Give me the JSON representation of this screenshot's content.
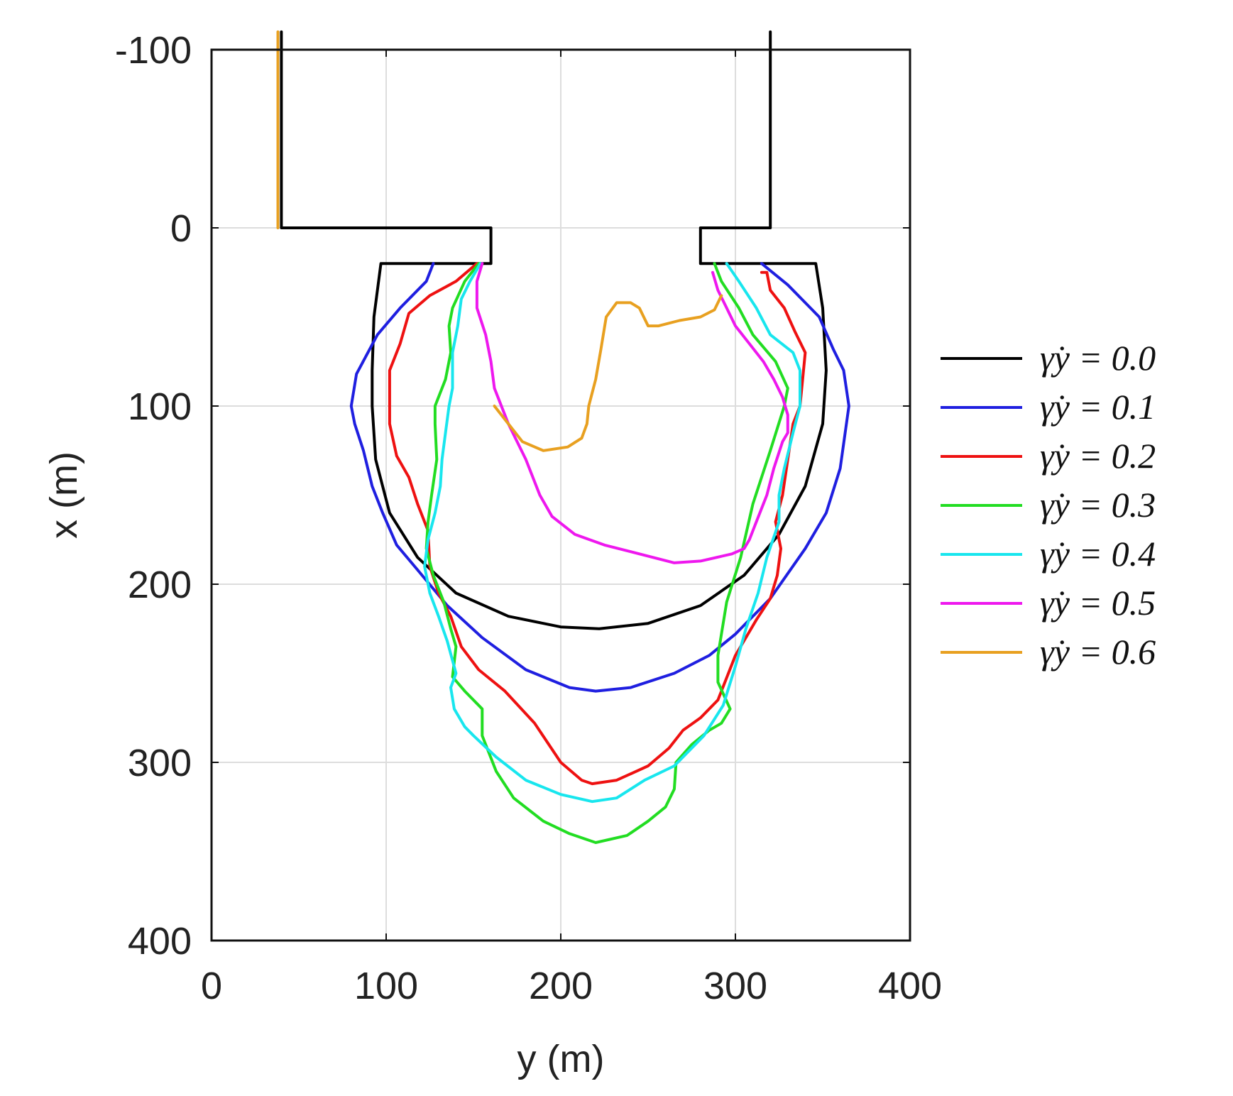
{
  "chart_data": {
    "type": "line",
    "title": "",
    "xlabel": "y (m)",
    "ylabel": "x (m)",
    "xlim": [
      0,
      400
    ],
    "ylim": [
      400,
      -100
    ],
    "y_axis_inverted": true,
    "grid": true,
    "legend_placement": "right",
    "x_ticks": [
      "0",
      "100",
      "200",
      "300",
      "400"
    ],
    "y_ticks": [
      "-100",
      "0",
      "100",
      "200",
      "300",
      "400"
    ],
    "series": [
      {
        "name": "γ̇y = 0.0",
        "color": "#000000",
        "points": [
          [
            40,
            -110
          ],
          [
            40,
            0
          ],
          [
            160,
            0
          ],
          [
            160,
            20
          ],
          [
            97,
            20
          ],
          [
            93,
            50
          ],
          [
            92,
            80
          ],
          [
            92,
            100
          ],
          [
            94,
            130
          ],
          [
            102,
            160
          ],
          [
            118,
            185
          ],
          [
            140,
            205
          ],
          [
            170,
            218
          ],
          [
            200,
            224
          ],
          [
            222,
            225
          ],
          [
            250,
            222
          ],
          [
            280,
            212
          ],
          [
            305,
            195
          ],
          [
            325,
            172
          ],
          [
            340,
            145
          ],
          [
            350,
            110
          ],
          [
            352,
            80
          ],
          [
            350,
            45
          ],
          [
            346,
            20
          ],
          [
            280,
            20
          ],
          [
            280,
            0
          ],
          [
            320,
            0
          ],
          [
            320,
            -110
          ]
        ]
      },
      {
        "name": "γ̇y = 0.1",
        "color": "#1f1fe0",
        "points": [
          [
            127,
            20
          ],
          [
            123,
            30
          ],
          [
            108,
            45
          ],
          [
            95,
            60
          ],
          [
            83,
            82
          ],
          [
            80,
            100
          ],
          [
            82,
            110
          ],
          [
            87,
            125
          ],
          [
            92,
            145
          ],
          [
            98,
            160
          ],
          [
            106,
            178
          ],
          [
            118,
            192
          ],
          [
            135,
            212
          ],
          [
            155,
            230
          ],
          [
            180,
            248
          ],
          [
            205,
            258
          ],
          [
            220,
            260
          ],
          [
            240,
            258
          ],
          [
            265,
            250
          ],
          [
            285,
            240
          ],
          [
            300,
            228
          ],
          [
            320,
            208
          ],
          [
            340,
            180
          ],
          [
            352,
            160
          ],
          [
            360,
            135
          ],
          [
            365,
            100
          ],
          [
            362,
            80
          ],
          [
            356,
            68
          ],
          [
            348,
            50
          ],
          [
            330,
            32
          ],
          [
            315,
            20
          ]
        ]
      },
      {
        "name": "γ̇y = 0.2",
        "color": "#ee1111",
        "points": [
          [
            152,
            20
          ],
          [
            140,
            30
          ],
          [
            125,
            38
          ],
          [
            113,
            48
          ],
          [
            108,
            65
          ],
          [
            102,
            80
          ],
          [
            102,
            110
          ],
          [
            106,
            128
          ],
          [
            113,
            140
          ],
          [
            118,
            155
          ],
          [
            124,
            170
          ],
          [
            125,
            190
          ],
          [
            130,
            205
          ],
          [
            137,
            218
          ],
          [
            143,
            235
          ],
          [
            153,
            248
          ],
          [
            168,
            260
          ],
          [
            185,
            278
          ],
          [
            200,
            300
          ],
          [
            212,
            310
          ],
          [
            218,
            312
          ],
          [
            232,
            310
          ],
          [
            250,
            302
          ],
          [
            262,
            292
          ],
          [
            270,
            282
          ],
          [
            280,
            275
          ],
          [
            290,
            265
          ],
          [
            300,
            240
          ],
          [
            312,
            220
          ],
          [
            320,
            208
          ],
          [
            324,
            195
          ],
          [
            326,
            180
          ],
          [
            323,
            165
          ],
          [
            327,
            150
          ],
          [
            330,
            130
          ],
          [
            333,
            110
          ],
          [
            337,
            100
          ],
          [
            338,
            90
          ],
          [
            340,
            70
          ],
          [
            334,
            58
          ],
          [
            328,
            45
          ],
          [
            320,
            35
          ],
          [
            318,
            25
          ],
          [
            315,
            25
          ]
        ]
      },
      {
        "name": "γ̇y = 0.3",
        "color": "#22dd22",
        "points": [
          [
            153,
            20
          ],
          [
            145,
            30
          ],
          [
            138,
            45
          ],
          [
            136,
            55
          ],
          [
            137,
            70
          ],
          [
            134,
            85
          ],
          [
            128,
            100
          ],
          [
            128,
            110
          ],
          [
            129,
            130
          ],
          [
            126,
            150
          ],
          [
            124,
            165
          ],
          [
            123,
            180
          ],
          [
            127,
            195
          ],
          [
            133,
            210
          ],
          [
            137,
            225
          ],
          [
            140,
            235
          ],
          [
            138,
            252
          ],
          [
            145,
            260
          ],
          [
            155,
            270
          ],
          [
            155,
            285
          ],
          [
            163,
            305
          ],
          [
            173,
            320
          ],
          [
            190,
            333
          ],
          [
            205,
            340
          ],
          [
            220,
            345
          ],
          [
            238,
            341
          ],
          [
            250,
            333
          ],
          [
            260,
            325
          ],
          [
            265,
            315
          ],
          [
            266,
            300
          ],
          [
            275,
            290
          ],
          [
            285,
            282
          ],
          [
            292,
            278
          ],
          [
            297,
            270
          ],
          [
            290,
            255
          ],
          [
            290,
            240
          ],
          [
            295,
            210
          ],
          [
            303,
            185
          ],
          [
            310,
            155
          ],
          [
            320,
            125
          ],
          [
            328,
            100
          ],
          [
            330,
            90
          ],
          [
            323,
            75
          ],
          [
            310,
            60
          ],
          [
            302,
            45
          ],
          [
            292,
            30
          ],
          [
            288,
            20
          ]
        ]
      },
      {
        "name": "γ̇y = 0.4",
        "color": "#18e6ee",
        "points": [
          [
            154,
            20
          ],
          [
            148,
            30
          ],
          [
            143,
            40
          ],
          [
            141,
            55
          ],
          [
            138,
            70
          ],
          [
            138,
            90
          ],
          [
            136,
            100
          ],
          [
            134,
            115
          ],
          [
            132,
            130
          ],
          [
            131,
            145
          ],
          [
            128,
            160
          ],
          [
            124,
            175
          ],
          [
            122,
            190
          ],
          [
            125,
            205
          ],
          [
            130,
            218
          ],
          [
            135,
            232
          ],
          [
            140,
            250
          ],
          [
            137,
            258
          ],
          [
            139,
            270
          ],
          [
            145,
            280
          ],
          [
            150,
            285
          ],
          [
            163,
            297
          ],
          [
            180,
            310
          ],
          [
            200,
            318
          ],
          [
            218,
            322
          ],
          [
            232,
            320
          ],
          [
            248,
            310
          ],
          [
            265,
            302
          ],
          [
            282,
            285
          ],
          [
            293,
            268
          ],
          [
            300,
            246
          ],
          [
            306,
            225
          ],
          [
            313,
            205
          ],
          [
            318,
            185
          ],
          [
            325,
            165
          ],
          [
            325,
            150
          ],
          [
            328,
            135
          ],
          [
            333,
            115
          ],
          [
            337,
            100
          ],
          [
            337,
            80
          ],
          [
            333,
            70
          ],
          [
            320,
            60
          ],
          [
            312,
            45
          ],
          [
            302,
            30
          ],
          [
            295,
            20
          ]
        ]
      },
      {
        "name": "γ̇y = 0.5",
        "color": "#ee18ee",
        "points": [
          [
            155,
            20
          ],
          [
            152,
            30
          ],
          [
            152,
            45
          ],
          [
            157,
            60
          ],
          [
            160,
            75
          ],
          [
            162,
            90
          ],
          [
            170,
            110
          ],
          [
            180,
            130
          ],
          [
            188,
            150
          ],
          [
            195,
            162
          ],
          [
            208,
            172
          ],
          [
            225,
            178
          ],
          [
            245,
            183
          ],
          [
            265,
            188
          ],
          [
            280,
            187
          ],
          [
            298,
            183
          ],
          [
            305,
            180
          ],
          [
            308,
            175
          ],
          [
            312,
            165
          ],
          [
            318,
            150
          ],
          [
            322,
            135
          ],
          [
            327,
            120
          ],
          [
            330,
            115
          ],
          [
            330,
            105
          ],
          [
            327,
            95
          ],
          [
            322,
            85
          ],
          [
            316,
            75
          ],
          [
            308,
            65
          ],
          [
            300,
            55
          ],
          [
            295,
            45
          ],
          [
            290,
            35
          ],
          [
            287,
            25
          ]
        ]
      },
      {
        "name": "γ̇y = 0.6",
        "color": "#e8a020",
        "points": [
          [
            38,
            -110
          ],
          [
            38,
            0
          ],
          [
            null,
            null
          ],
          [
            162,
            100
          ],
          [
            170,
            110
          ],
          [
            178,
            120
          ],
          [
            190,
            125
          ],
          [
            204,
            123
          ],
          [
            212,
            118
          ],
          [
            215,
            110
          ],
          [
            216,
            100
          ],
          [
            220,
            85
          ],
          [
            223,
            68
          ],
          [
            226,
            50
          ],
          [
            232,
            42
          ],
          [
            240,
            42
          ],
          [
            245,
            45
          ],
          [
            250,
            55
          ],
          [
            256,
            55
          ],
          [
            268,
            52
          ],
          [
            280,
            50
          ],
          [
            288,
            46
          ],
          [
            292,
            38
          ]
        ]
      }
    ]
  }
}
